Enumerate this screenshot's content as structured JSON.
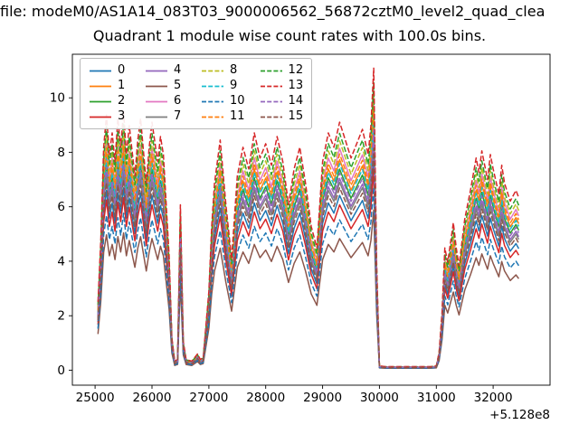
{
  "chart_data": {
    "type": "line",
    "header_text": "file: modeM0/AS1A14_083T03_9000006562_56872cztM0_level2_quad_clea",
    "title": "Quadrant 1 module wise count rates with 100.0s bins.",
    "xlabel": "",
    "ylabel": "",
    "x_axis_offset": "+5.128e8",
    "xlim": [
      24600,
      33000
    ],
    "ylim": [
      -0.55,
      11.6
    ],
    "x_ticks": [
      25000,
      26000,
      27000,
      28000,
      29000,
      30000,
      31000,
      32000
    ],
    "y_ticks": [
      0,
      2,
      4,
      6,
      8,
      10
    ],
    "grid": false,
    "legend": {
      "location": "upper left",
      "ncol": 4
    },
    "series_values": "y values of each module = base_curve[i] * scale (per-module multiplier estimated from the plot band)",
    "x": [
      25050,
      25100,
      25150,
      25200,
      25250,
      25300,
      25350,
      25400,
      25450,
      25500,
      25550,
      25600,
      25700,
      25750,
      25800,
      25900,
      25950,
      26000,
      26100,
      26150,
      26200,
      26300,
      26350,
      26400,
      26450,
      26500,
      26550,
      26600,
      26700,
      26800,
      26850,
      26900,
      27000,
      27050,
      27100,
      27200,
      27300,
      27400,
      27500,
      27600,
      27700,
      27800,
      27900,
      28000,
      28100,
      28200,
      28300,
      28400,
      28500,
      28600,
      28700,
      28800,
      28900,
      29000,
      29100,
      29200,
      29300,
      29400,
      29500,
      29600,
      29700,
      29800,
      29850,
      29900,
      29950,
      30000,
      30100,
      30300,
      30500,
      30700,
      30900,
      31000,
      31050,
      31100,
      31150,
      31200,
      31300,
      31350,
      31400,
      31500,
      31600,
      31700,
      31750,
      31800,
      31900,
      31950,
      32000,
      32100,
      32150,
      32200,
      32300,
      32400,
      32450
    ],
    "base_curve": [
      1.9,
      3.6,
      6.2,
      7.1,
      6.0,
      6.6,
      5.8,
      7.0,
      6.2,
      7.2,
      6.0,
      6.8,
      5.4,
      6.4,
      7.0,
      5.2,
      6.2,
      6.9,
      5.8,
      6.5,
      6.0,
      3.2,
      0.9,
      0.25,
      0.3,
      4.6,
      0.8,
      0.3,
      0.25,
      0.45,
      0.3,
      0.35,
      2.2,
      4.0,
      5.2,
      6.4,
      4.6,
      3.1,
      5.4,
      6.2,
      5.6,
      6.6,
      5.9,
      6.3,
      5.7,
      6.5,
      5.8,
      4.6,
      5.6,
      6.2,
      5.2,
      4.0,
      3.4,
      5.8,
      6.6,
      6.2,
      6.9,
      6.4,
      5.9,
      6.3,
      6.7,
      6.0,
      6.8,
      8.4,
      3.0,
      0.12,
      0.1,
      0.1,
      0.1,
      0.1,
      0.1,
      0.12,
      0.5,
      1.6,
      3.4,
      3.0,
      4.1,
      3.4,
      2.9,
      4.2,
      5.0,
      5.9,
      5.5,
      6.1,
      5.3,
      6.0,
      5.6,
      4.9,
      5.7,
      5.2,
      4.7,
      5.0,
      4.8
    ],
    "series": [
      {
        "name": "0",
        "color": "#1f77b4",
        "linestyle": "solid",
        "scale": 0.93
      },
      {
        "name": "1",
        "color": "#ff7f0e",
        "linestyle": "solid",
        "scale": 1.12
      },
      {
        "name": "2",
        "color": "#2ca02c",
        "linestyle": "solid",
        "scale": 1.07
      },
      {
        "name": "3",
        "color": "#d62728",
        "linestyle": "solid",
        "scale": 0.88
      },
      {
        "name": "4",
        "color": "#9467bd",
        "linestyle": "solid",
        "scale": 1.02
      },
      {
        "name": "5",
        "color": "#8c564b",
        "linestyle": "solid",
        "scale": 0.7
      },
      {
        "name": "6",
        "color": "#e377c2",
        "linestyle": "solid",
        "scale": 1.18
      },
      {
        "name": "7",
        "color": "#7f7f7f",
        "linestyle": "solid",
        "scale": 1.0
      },
      {
        "name": "8",
        "color": "#bcbd22",
        "linestyle": "dashed",
        "scale": 1.22
      },
      {
        "name": "9",
        "color": "#17becf",
        "linestyle": "dashed",
        "scale": 1.1
      },
      {
        "name": "10",
        "color": "#1f77b4",
        "linestyle": "dashed",
        "scale": 0.8
      },
      {
        "name": "11",
        "color": "#ff7f0e",
        "linestyle": "dashed",
        "scale": 1.15
      },
      {
        "name": "12",
        "color": "#2ca02c",
        "linestyle": "dashed",
        "scale": 1.26
      },
      {
        "name": "13",
        "color": "#d62728",
        "linestyle": "dashed",
        "scale": 1.32
      },
      {
        "name": "14",
        "color": "#9467bd",
        "linestyle": "dashed",
        "scale": 1.05
      },
      {
        "name": "15",
        "color": "#8c564b",
        "linestyle": "dashed",
        "scale": 0.97
      }
    ]
  }
}
